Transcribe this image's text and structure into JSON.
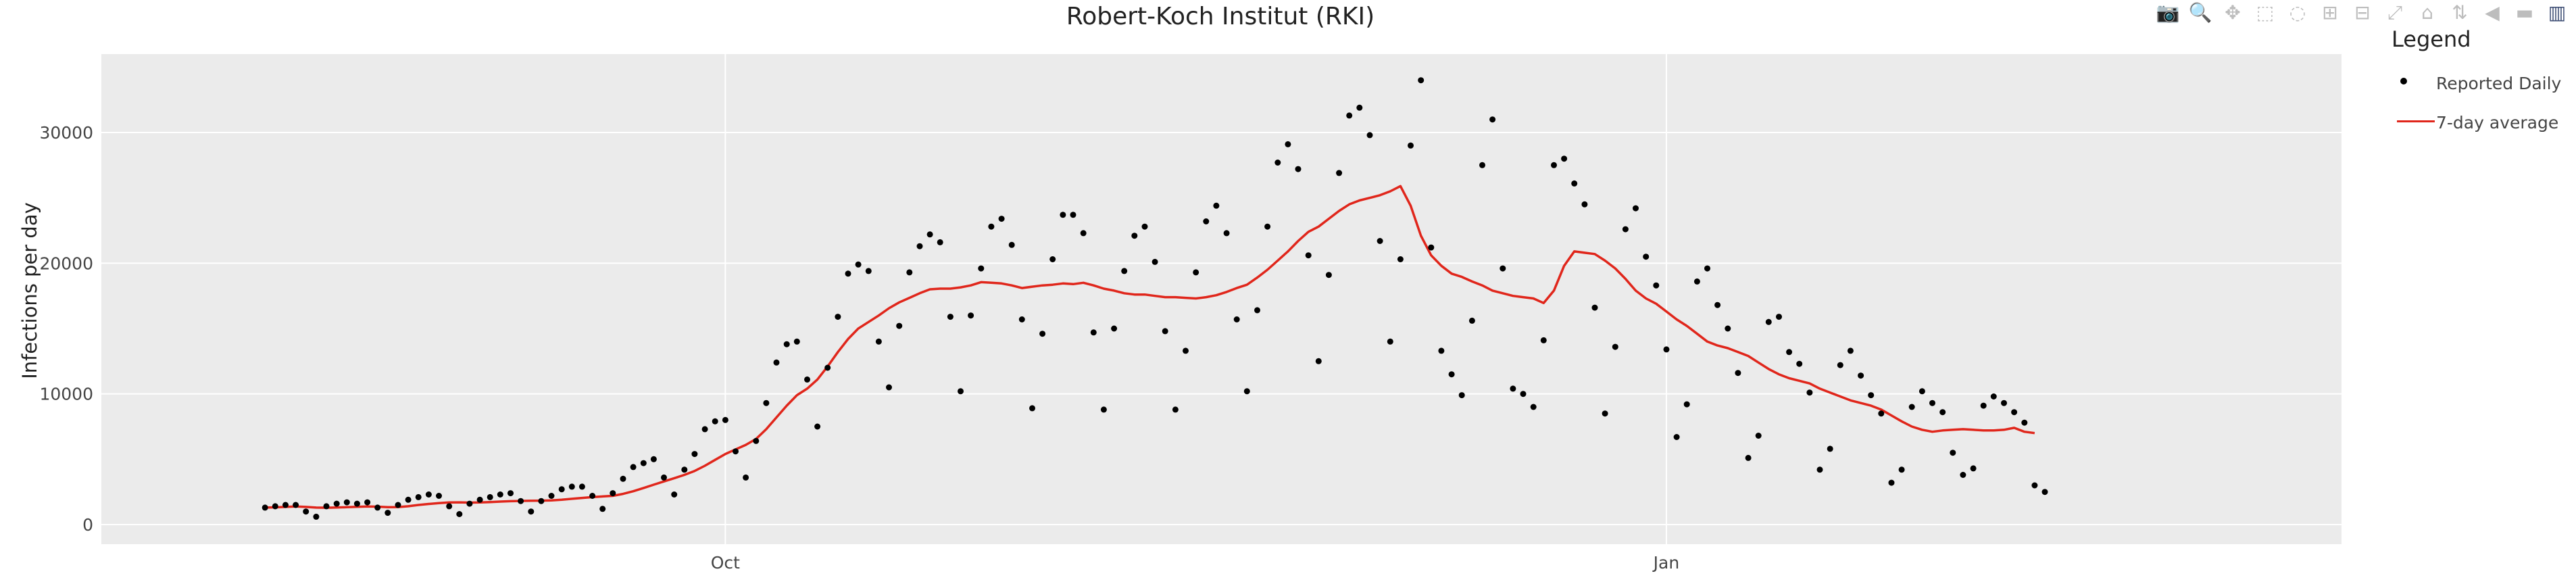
{
  "chart_data": {
    "type": "scatter",
    "title": "Robert-Koch Institut (RKI)",
    "xlabel": "",
    "ylabel": "Infections per day",
    "x_start": "2020-08-17",
    "x_ticks": [
      {
        "date": "2020-10-01",
        "label": "Oct"
      },
      {
        "date": "2021-01-01",
        "label": "Jan"
      }
    ],
    "xlim": [
      "2020-08-01",
      "2021-03-08"
    ],
    "y_ticks": [
      0,
      10000,
      20000,
      30000
    ],
    "ylim": [
      -1500,
      36000
    ],
    "grid": true,
    "legend_title": "Legend",
    "legend_position": "right",
    "background": "#ebebeb",
    "series": [
      {
        "name": "Reported Daily",
        "mode": "markers",
        "color": "#000000",
        "values": [
          1300,
          1400,
          1500,
          1500,
          1000,
          600,
          1400,
          1600,
          1700,
          1600,
          1700,
          1300,
          900,
          1500,
          1900,
          2100,
          2300,
          2200,
          1400,
          800,
          1600,
          1900,
          2100,
          2300,
          2400,
          1800,
          1000,
          1800,
          2200,
          2700,
          2900,
          2900,
          2200,
          1200,
          2400,
          3500,
          4400,
          4700,
          5000,
          3600,
          2300,
          4200,
          5400,
          7300,
          7900,
          8000,
          5600,
          3600,
          6400,
          9300,
          12400,
          13800,
          14000,
          11100,
          7500,
          12000,
          15900,
          19200,
          19900,
          19400,
          14000,
          10500,
          15200,
          19300,
          21300,
          22200,
          21600,
          15900,
          10200,
          16000,
          19600,
          22800,
          23400,
          21400,
          15700,
          8900,
          14600,
          20300,
          23700,
          23700,
          22300,
          14700,
          8800,
          15000,
          19400,
          22100,
          22800,
          20100,
          14800,
          8800,
          13300,
          19300,
          23200,
          24400,
          22300,
          15700,
          10200,
          16400,
          22800,
          27700,
          29100,
          27200,
          20600,
          12500,
          19100,
          26900,
          31300,
          31900,
          29800,
          21700,
          14000,
          20300,
          29000,
          34000,
          21200,
          13300,
          11500,
          9900,
          15600,
          27500,
          31000,
          19600,
          10400,
          10000,
          9000,
          14100,
          27500,
          28000,
          26100,
          24500,
          16600,
          8500,
          13600,
          22600,
          24200,
          20500,
          18300,
          13400,
          6700,
          9200,
          18600,
          19600,
          16800,
          15000,
          11600,
          5100,
          6800,
          15500,
          15900,
          13200,
          12300,
          10100,
          4200,
          5800,
          12200,
          13300,
          11400,
          9900,
          8500,
          3200,
          4200,
          9000,
          10200,
          9300,
          8600,
          5500,
          3800,
          4300,
          9100,
          9800,
          9300,
          8600,
          7800,
          3000,
          2500
        ]
      },
      {
        "name": "7-day average",
        "mode": "lines",
        "color": "#e0261b",
        "values": [
          1300,
          1320,
          1350,
          1380,
          1350,
          1300,
          1290,
          1310,
          1330,
          1360,
          1380,
          1370,
          1330,
          1340,
          1400,
          1500,
          1580,
          1640,
          1690,
          1700,
          1680,
          1690,
          1720,
          1760,
          1790,
          1810,
          1820,
          1830,
          1850,
          1900,
          1970,
          2040,
          2100,
          2150,
          2200,
          2350,
          2550,
          2800,
          3050,
          3300,
          3550,
          3800,
          4100,
          4500,
          4950,
          5400,
          5750,
          6100,
          6550,
          7300,
          8200,
          9100,
          9900,
          10400,
          11100,
          12100,
          13200,
          14200,
          15000,
          15500,
          16000,
          16550,
          17000,
          17350,
          17700,
          18000,
          18050,
          18050,
          18150,
          18300,
          18550,
          18500,
          18450,
          18300,
          18100,
          18200,
          18300,
          18350,
          18450,
          18400,
          18500,
          18300,
          18050,
          17900,
          17700,
          17600,
          17600,
          17500,
          17400,
          17400,
          17350,
          17300,
          17400,
          17550,
          17800,
          18100,
          18350,
          18900,
          19500,
          20200,
          20900,
          21700,
          22400,
          22800,
          23400,
          24000,
          24500,
          24800,
          25000,
          25200,
          25500,
          25900,
          24400,
          22100,
          20600,
          19800,
          19200,
          18950,
          18600,
          18300,
          17900,
          17700,
          17500,
          17400,
          17300,
          16950,
          17900,
          19800,
          20900,
          20800,
          20700,
          20200,
          19600,
          18800,
          17900,
          17300,
          16900,
          16300,
          15700,
          15200,
          14600,
          14000,
          13700,
          13500,
          13200,
          12900,
          12400,
          11900,
          11500,
          11200,
          11000,
          10800,
          10400,
          10100,
          9800,
          9500,
          9300,
          9100,
          8800,
          8350,
          7900,
          7500,
          7250,
          7100,
          7200,
          7250,
          7300,
          7250,
          7200,
          7200,
          7250,
          7400,
          7100,
          7000
        ]
      }
    ]
  },
  "modebar": {
    "icons": [
      "camera-icon",
      "zoom-icon",
      "pan-icon",
      "box-select-icon",
      "lasso-icon",
      "zoom-in-icon",
      "zoom-out-icon",
      "autoscale-icon",
      "home-icon",
      "spike-lines-icon",
      "hover-closest-icon",
      "hover-compare-icon",
      "plotly-logo-icon"
    ],
    "glyphs": [
      "📷",
      "🔍",
      "✥",
      "⬚",
      "◌",
      "⊞",
      "⊟",
      "⤢",
      "⌂",
      "⇅",
      "◀",
      "▬",
      "▥"
    ]
  }
}
